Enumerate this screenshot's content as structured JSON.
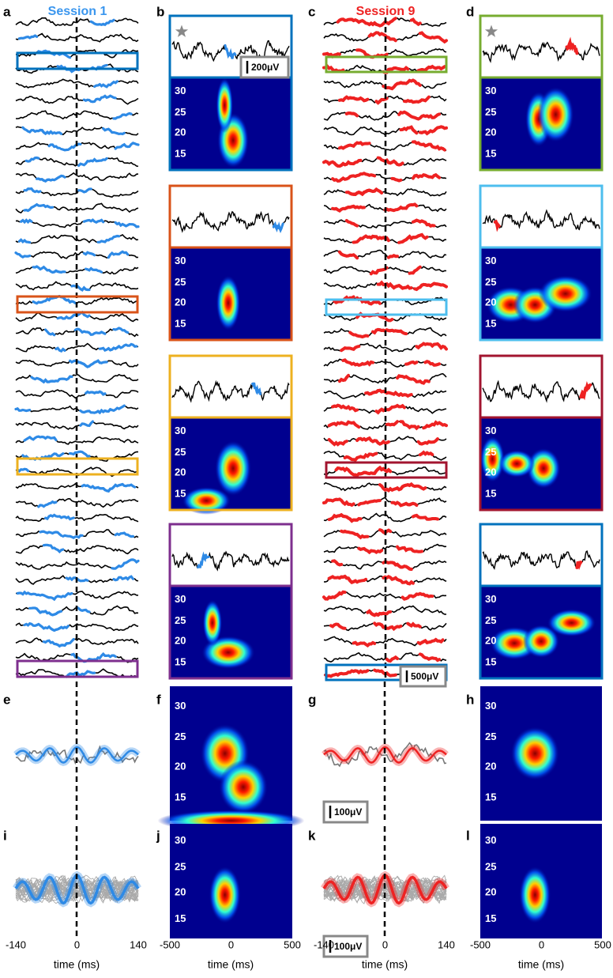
{
  "panel_labels": [
    "a",
    "b",
    "c",
    "d",
    "e",
    "f",
    "g",
    "h",
    "i",
    "j",
    "k",
    "l"
  ],
  "titles": [
    "Session 1",
    "Session 9"
  ],
  "scale_bars": [
    "200μV",
    "500μV",
    "100μV",
    "100μV"
  ],
  "frequency_ticks": [
    30,
    25,
    20,
    15
  ],
  "lag_ticks": [
    -140,
    0,
    140
  ],
  "time_ticks": [
    -500,
    0,
    500
  ],
  "x_label": "time (ms)"
}
